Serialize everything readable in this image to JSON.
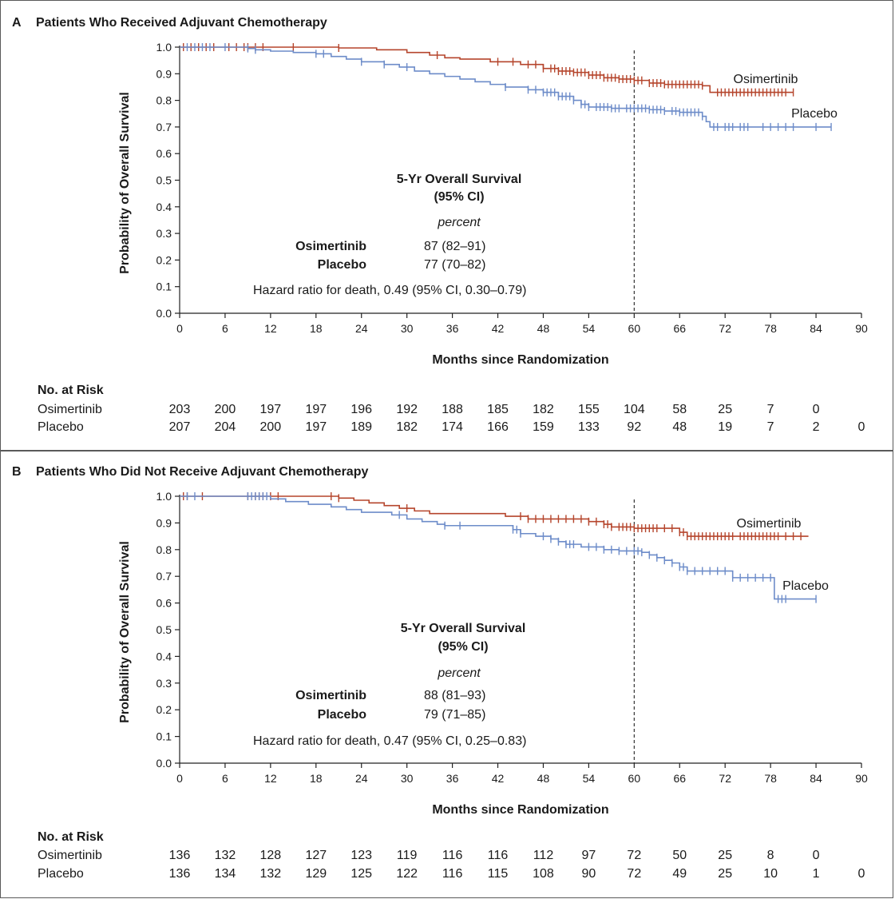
{
  "colors": {
    "osimertinib": "#b5452c",
    "placebo": "#6d8cc9"
  },
  "chart_data": [
    {
      "type": "line",
      "panel_letter": "A",
      "title": "Patients Who Received Adjuvant Chemotherapy",
      "xlabel": "Months since Randomization",
      "ylabel": "Probability of Overall Survival",
      "xlim": [
        0,
        90
      ],
      "ylim": [
        0,
        1
      ],
      "xticks": [
        0,
        6,
        12,
        18,
        24,
        30,
        36,
        42,
        48,
        54,
        60,
        66,
        72,
        78,
        84,
        90
      ],
      "yticks": [
        "0.0",
        "0.1",
        "0.2",
        "0.3",
        "0.4",
        "0.5",
        "0.6",
        "0.7",
        "0.8",
        "0.9",
        "1.0"
      ],
      "reference_line_x": 60,
      "series": [
        {
          "name": "Osimertinib",
          "label": "Osimertinib",
          "steps": [
            [
              0,
              1.0
            ],
            [
              21,
              0.997
            ],
            [
              26,
              0.99
            ],
            [
              30,
              0.98
            ],
            [
              33,
              0.97
            ],
            [
              35,
              0.96
            ],
            [
              37,
              0.955
            ],
            [
              41,
              0.945
            ],
            [
              45,
              0.935
            ],
            [
              48,
              0.92
            ],
            [
              50,
              0.91
            ],
            [
              52,
              0.905
            ],
            [
              54,
              0.895
            ],
            [
              56,
              0.885
            ],
            [
              58,
              0.88
            ],
            [
              60,
              0.875
            ],
            [
              62,
              0.865
            ],
            [
              64,
              0.86
            ],
            [
              69,
              0.855
            ],
            [
              70,
              0.83
            ],
            [
              81,
              0.83
            ]
          ],
          "censors": [
            0.5,
            1.5,
            2.5,
            3.5,
            4.5,
            6.5,
            7.5,
            8.5,
            9,
            10,
            11,
            15,
            21,
            34,
            42,
            44,
            46,
            47,
            48,
            49,
            49.5,
            50,
            50.5,
            51,
            51.5,
            52,
            52.5,
            53,
            53.5,
            54,
            54.5,
            55,
            55.5,
            56,
            56.5,
            57,
            57.5,
            58,
            58.5,
            59,
            59.5,
            60,
            60.5,
            61,
            62,
            62.5,
            63,
            63.5,
            64,
            64.5,
            65,
            65.5,
            66,
            66.5,
            67,
            67.5,
            68,
            68.5,
            69,
            71,
            71.5,
            72,
            72.5,
            73,
            73.5,
            74,
            74.5,
            75,
            75.5,
            76,
            76.5,
            77,
            77.5,
            78,
            78.5,
            79,
            79.5,
            80,
            81
          ]
        },
        {
          "name": "Placebo",
          "label": "Placebo",
          "steps": [
            [
              0,
              1.0
            ],
            [
              9,
              0.995
            ],
            [
              10,
              0.99
            ],
            [
              12,
              0.985
            ],
            [
              15,
              0.98
            ],
            [
              18,
              0.975
            ],
            [
              20,
              0.965
            ],
            [
              22,
              0.955
            ],
            [
              24,
              0.945
            ],
            [
              27,
              0.935
            ],
            [
              29,
              0.925
            ],
            [
              31,
              0.91
            ],
            [
              33,
              0.9
            ],
            [
              35,
              0.89
            ],
            [
              37,
              0.88
            ],
            [
              39,
              0.87
            ],
            [
              41,
              0.86
            ],
            [
              43,
              0.85
            ],
            [
              46,
              0.84
            ],
            [
              48,
              0.83
            ],
            [
              50,
              0.815
            ],
            [
              52,
              0.8
            ],
            [
              53,
              0.785
            ],
            [
              54,
              0.775
            ],
            [
              57,
              0.77
            ],
            [
              62,
              0.765
            ],
            [
              64,
              0.76
            ],
            [
              66,
              0.755
            ],
            [
              69,
              0.74
            ],
            [
              69.5,
              0.72
            ],
            [
              70,
              0.7
            ],
            [
              86,
              0.7
            ]
          ],
          "censors": [
            1,
            2,
            3,
            4,
            6,
            9,
            10,
            18,
            19,
            24,
            27,
            30,
            43,
            46,
            47,
            48,
            48.5,
            49,
            49.5,
            50,
            50.5,
            51,
            51.5,
            52,
            53,
            53.5,
            54,
            55,
            55.5,
            56,
            56.5,
            57,
            57.5,
            58,
            59,
            59.5,
            60,
            60.5,
            61,
            61.5,
            62,
            62.5,
            63,
            63.5,
            64,
            65,
            65.5,
            66,
            66.5,
            67,
            67.5,
            68,
            68.5,
            69,
            70.5,
            71,
            72,
            72.5,
            73,
            74,
            74.5,
            75,
            77,
            78,
            79,
            80,
            81,
            84,
            86
          ]
        }
      ],
      "summary": {
        "heading": "5-Yr Overall Survival",
        "heading2": "(95% CI)",
        "unit": "percent",
        "rows": [
          {
            "group": "Osimertinib",
            "value": "87 (82–91)"
          },
          {
            "group": "Placebo",
            "value": "77 (70–82)"
          }
        ],
        "hazard": "Hazard ratio for death, 0.49 (95% CI, 0.30–0.79)"
      },
      "risk_table": {
        "title": "No. at Risk",
        "rows": [
          {
            "group": "Osimertinib",
            "counts": [
              "203",
              "200",
              "197",
              "197",
              "196",
              "192",
              "188",
              "185",
              "182",
              "155",
              "104",
              "58",
              "25",
              "7",
              "0"
            ]
          },
          {
            "group": "Placebo",
            "counts": [
              "207",
              "204",
              "200",
              "197",
              "189",
              "182",
              "174",
              "166",
              "159",
              "133",
              "92",
              "48",
              "19",
              "7",
              "2",
              "0"
            ]
          }
        ]
      }
    },
    {
      "type": "line",
      "panel_letter": "B",
      "title": "Patients Who Did Not Receive Adjuvant Chemotherapy",
      "xlabel": "Months since Randomization",
      "ylabel": "Probability of Overall Survival",
      "xlim": [
        0,
        90
      ],
      "ylim": [
        0,
        1
      ],
      "xticks": [
        0,
        6,
        12,
        18,
        24,
        30,
        36,
        42,
        48,
        54,
        60,
        66,
        72,
        78,
        84,
        90
      ],
      "yticks": [
        "0.0",
        "0.1",
        "0.2",
        "0.3",
        "0.4",
        "0.5",
        "0.6",
        "0.7",
        "0.8",
        "0.9",
        "1.0"
      ],
      "reference_line_x": 60,
      "series": [
        {
          "name": "Osimertinib",
          "label": "Osimertinib",
          "steps": [
            [
              0,
              1.0
            ],
            [
              21,
              0.993
            ],
            [
              23,
              0.985
            ],
            [
              25,
              0.975
            ],
            [
              27,
              0.965
            ],
            [
              29,
              0.955
            ],
            [
              31,
              0.945
            ],
            [
              33,
              0.935
            ],
            [
              43,
              0.925
            ],
            [
              46,
              0.915
            ],
            [
              54,
              0.905
            ],
            [
              56,
              0.895
            ],
            [
              57,
              0.885
            ],
            [
              60,
              0.88
            ],
            [
              66,
              0.865
            ],
            [
              67,
              0.85
            ],
            [
              83,
              0.85
            ]
          ],
          "censors": [
            0.5,
            1,
            3,
            9,
            10,
            10.5,
            11,
            12,
            13,
            20,
            21,
            30,
            45,
            46,
            47,
            48,
            49,
            50,
            51,
            52,
            53,
            54,
            55,
            56,
            56.5,
            57,
            58,
            58.5,
            59,
            59.5,
            60,
            60.5,
            61,
            61.5,
            62,
            62.5,
            63,
            64,
            65,
            66,
            66.5,
            67,
            67.5,
            68,
            68.5,
            69,
            69.5,
            70,
            70.5,
            71,
            71.5,
            72,
            72.5,
            73,
            74,
            74.5,
            75,
            75.5,
            76,
            76.5,
            77,
            77.5,
            78,
            78.5,
            79,
            80,
            81,
            82
          ]
        },
        {
          "name": "Placebo",
          "label": "Placebo",
          "steps": [
            [
              0,
              1.0
            ],
            [
              12,
              0.99
            ],
            [
              14,
              0.98
            ],
            [
              17,
              0.97
            ],
            [
              20,
              0.96
            ],
            [
              22,
              0.95
            ],
            [
              24,
              0.94
            ],
            [
              28,
              0.93
            ],
            [
              30,
              0.915
            ],
            [
              32,
              0.905
            ],
            [
              34,
              0.895
            ],
            [
              35,
              0.89
            ],
            [
              44,
              0.875
            ],
            [
              45,
              0.86
            ],
            [
              47,
              0.85
            ],
            [
              49,
              0.84
            ],
            [
              50,
              0.83
            ],
            [
              51,
              0.82
            ],
            [
              53,
              0.81
            ],
            [
              56,
              0.8
            ],
            [
              58,
              0.795
            ],
            [
              61,
              0.79
            ],
            [
              62,
              0.78
            ],
            [
              63,
              0.77
            ],
            [
              64,
              0.76
            ],
            [
              65,
              0.75
            ],
            [
              66,
              0.735
            ],
            [
              67,
              0.72
            ],
            [
              73,
              0.695
            ],
            [
              78.5,
              0.615
            ],
            [
              84,
              0.615
            ]
          ],
          "censors": [
            1,
            2,
            9,
            9.5,
            10,
            10.5,
            11,
            11.5,
            29,
            35,
            37,
            44,
            44.5,
            45,
            48,
            49,
            50,
            51,
            51.5,
            52,
            54,
            55,
            56,
            57,
            58,
            59,
            60,
            60.5,
            61,
            62,
            63,
            64,
            65,
            66,
            66.5,
            67,
            68,
            69,
            70,
            71,
            72,
            73,
            74,
            75,
            76,
            77,
            78,
            79,
            79.5,
            80,
            84
          ]
        }
      ],
      "summary": {
        "heading": "5-Yr Overall Survival",
        "heading2": "(95% CI)",
        "unit": "percent",
        "rows": [
          {
            "group": "Osimertinib",
            "value": "88 (81–93)"
          },
          {
            "group": "Placebo",
            "value": "79 (71–85)"
          }
        ],
        "hazard": "Hazard ratio for death, 0.47 (95% CI, 0.25–0.83)"
      },
      "risk_table": {
        "title": "No. at Risk",
        "rows": [
          {
            "group": "Osimertinib",
            "counts": [
              "136",
              "132",
              "128",
              "127",
              "123",
              "119",
              "116",
              "116",
              "112",
              "97",
              "72",
              "50",
              "25",
              "8",
              "0"
            ]
          },
          {
            "group": "Placebo",
            "counts": [
              "136",
              "134",
              "132",
              "129",
              "125",
              "122",
              "116",
              "115",
              "108",
              "90",
              "72",
              "49",
              "25",
              "10",
              "1",
              "0"
            ]
          }
        ]
      }
    }
  ]
}
